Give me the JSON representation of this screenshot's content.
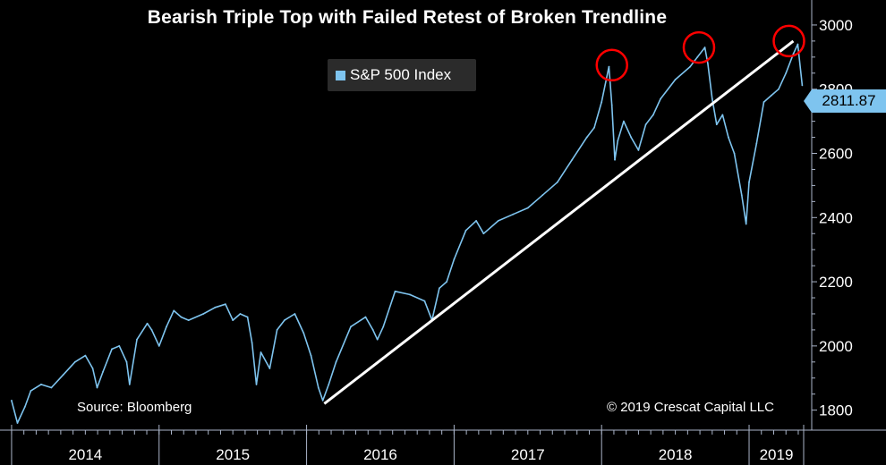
{
  "chart_data": {
    "type": "line",
    "title": "Bearish Triple Top with Failed Retest of Broken Trendline",
    "series": [
      {
        "name": "S&P 500 Index",
        "color": "#7ec4ef",
        "x": [
          2014.0,
          2014.04,
          2014.09,
          2014.13,
          2014.2,
          2014.27,
          2014.35,
          2014.43,
          2014.5,
          2014.55,
          2014.58,
          2014.62,
          2014.68,
          2014.73,
          2014.78,
          2014.8,
          2014.85,
          2014.92,
          2014.95,
          2015.0,
          2015.05,
          2015.1,
          2015.15,
          2015.2,
          2015.3,
          2015.38,
          2015.45,
          2015.5,
          2015.55,
          2015.6,
          2015.63,
          2015.66,
          2015.69,
          2015.75,
          2015.8,
          2015.85,
          2015.92,
          2015.98,
          2016.03,
          2016.08,
          2016.11,
          2016.15,
          2016.2,
          2016.3,
          2016.4,
          2016.45,
          2016.48,
          2016.52,
          2016.6,
          2016.7,
          2016.8,
          2016.85,
          2016.9,
          2016.95,
          2017.0,
          2017.08,
          2017.15,
          2017.2,
          2017.3,
          2017.4,
          2017.5,
          2017.6,
          2017.7,
          2017.8,
          2017.9,
          2017.95,
          2018.0,
          2018.05,
          2018.07,
          2018.09,
          2018.11,
          2018.15,
          2018.2,
          2018.25,
          2018.3,
          2018.35,
          2018.4,
          2018.5,
          2018.6,
          2018.65,
          2018.7,
          2018.72,
          2018.75,
          2018.78,
          2018.82,
          2018.86,
          2018.9,
          2018.95,
          2018.98,
          2019.0,
          2019.05,
          2019.1,
          2019.15,
          2019.2,
          2019.25,
          2019.3,
          2019.33,
          2019.36
        ],
        "y": [
          1830,
          1760,
          1810,
          1860,
          1880,
          1870,
          1910,
          1950,
          1970,
          1930,
          1870,
          1920,
          1990,
          2000,
          1950,
          1880,
          2020,
          2070,
          2050,
          2000,
          2060,
          2110,
          2090,
          2080,
          2100,
          2120,
          2130,
          2080,
          2100,
          2090,
          2010,
          1880,
          1980,
          1930,
          2050,
          2080,
          2100,
          2040,
          1970,
          1870,
          1830,
          1880,
          1950,
          2060,
          2090,
          2050,
          2020,
          2060,
          2170,
          2160,
          2140,
          2080,
          2180,
          2200,
          2270,
          2360,
          2390,
          2350,
          2390,
          2410,
          2430,
          2470,
          2510,
          2580,
          2650,
          2680,
          2760,
          2870,
          2750,
          2580,
          2640,
          2700,
          2650,
          2610,
          2690,
          2720,
          2770,
          2830,
          2870,
          2900,
          2930,
          2880,
          2770,
          2690,
          2720,
          2650,
          2600,
          2470,
          2380,
          2510,
          2630,
          2760,
          2780,
          2800,
          2850,
          2910,
          2940,
          2812
        ]
      }
    ],
    "xlim": [
      2013.97,
      2019.37
    ],
    "ylim": [
      1760,
      3050
    ],
    "x_ticks": [
      "2014",
      "2015",
      "2016",
      "2017",
      "2018",
      "2019"
    ],
    "y_ticks": [
      1800,
      2000,
      2200,
      2400,
      2600,
      2800,
      3000
    ],
    "trendline": {
      "x": [
        2016.12,
        2019.3
      ],
      "y": [
        1820,
        2950
      ],
      "color": "#ffffff"
    },
    "highlight_circles": [
      {
        "x": 2018.07,
        "y": 2875,
        "color": "#ff0000"
      },
      {
        "x": 2018.66,
        "y": 2930,
        "color": "#ff0000"
      },
      {
        "x": 2019.27,
        "y": 2950,
        "color": "#ff0000"
      }
    ],
    "last_value": "2811.87",
    "source_note": "Source: Bloomberg",
    "copyright": "© 2019 Crescat Capital LLC",
    "background": "#000000",
    "axis_color": "#aab4c8",
    "grid": false,
    "legend_position": "top-center"
  }
}
